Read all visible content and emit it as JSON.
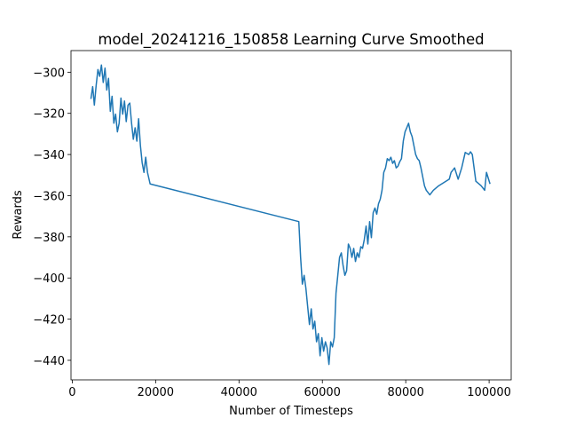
{
  "chart_data": {
    "type": "line",
    "title": "model_20241216_150858 Learning Curve Smoothed",
    "xlabel": "Number of Timesteps",
    "ylabel": "Rewards",
    "xlim": [
      -300,
      105300
    ],
    "ylim": [
      -449.5,
      -289.5
    ],
    "xticks": [
      0,
      20000,
      40000,
      60000,
      80000,
      100000
    ],
    "yticks": [
      {
        "value": -440,
        "label": "−440"
      },
      {
        "value": -420,
        "label": "−420"
      },
      {
        "value": -400,
        "label": "−400"
      },
      {
        "value": -380,
        "label": "−380"
      },
      {
        "value": -360,
        "label": "−360"
      },
      {
        "value": -340,
        "label": "−340"
      },
      {
        "value": -320,
        "label": "−320"
      },
      {
        "value": -300,
        "label": "−300"
      }
    ],
    "series": [
      {
        "color": "#1f77b4",
        "x": [
          4480,
          4900,
          5300,
          5730,
          6160,
          6580,
          7000,
          7430,
          7860,
          8280,
          8700,
          9130,
          9550,
          9980,
          10400,
          10830,
          11250,
          11680,
          12100,
          12530,
          12950,
          13380,
          13800,
          14230,
          14650,
          15080,
          15500,
          15920,
          16350,
          16770,
          17200,
          17620,
          18050,
          18680,
          54350,
          54780,
          55200,
          55630,
          56050,
          56480,
          56900,
          57330,
          57750,
          58180,
          58600,
          59030,
          59450,
          59880,
          60300,
          60730,
          61150,
          61580,
          62000,
          62430,
          62850,
          63270,
          63700,
          64120,
          64550,
          64970,
          65400,
          65820,
          66240,
          66670,
          67090,
          67520,
          67940,
          68370,
          68790,
          69220,
          69640,
          70060,
          70490,
          70910,
          71340,
          71760,
          72190,
          72610,
          73040,
          73460,
          73890,
          74310,
          74730,
          75160,
          75580,
          76010,
          76430,
          76860,
          77280,
          77710,
          78130,
          78560,
          78980,
          79410,
          79830,
          80250,
          80680,
          81100,
          81530,
          81950,
          82380,
          82800,
          83230,
          83650,
          84080,
          84500,
          84930,
          85780,
          86620,
          87900,
          90440,
          90870,
          91720,
          92570,
          93420,
          94270,
          95120,
          95540,
          95970,
          96820,
          98090,
          98940,
          99370,
          100220
        ],
        "values": [
          -313,
          -307,
          -316,
          -306.5,
          -298.7,
          -302,
          -296.5,
          -305,
          -298,
          -308.7,
          -303,
          -319,
          -311.7,
          -324.8,
          -320.4,
          -329,
          -324.8,
          -312.6,
          -320.4,
          -314,
          -324,
          -316,
          -315,
          -324.8,
          -332.6,
          -327,
          -333.5,
          -322.6,
          -335.6,
          -344,
          -348.7,
          -341.3,
          -348.7,
          -354.3,
          -372.6,
          -390,
          -403,
          -398.7,
          -405,
          -414,
          -422.6,
          -415,
          -424.8,
          -421,
          -431,
          -427,
          -437.8,
          -429,
          -435.6,
          -431,
          -434,
          -442,
          -431,
          -433.5,
          -429,
          -407.4,
          -398.7,
          -390,
          -387.8,
          -394,
          -398.7,
          -396.5,
          -383.5,
          -385.6,
          -390,
          -385.6,
          -392,
          -387.8,
          -390,
          -384.8,
          -385.6,
          -381.3,
          -374.8,
          -383.5,
          -372.6,
          -380.4,
          -368.3,
          -366,
          -369,
          -364,
          -361.7,
          -357.4,
          -348.7,
          -346.5,
          -342,
          -343,
          -341.3,
          -344.3,
          -343,
          -346.5,
          -345.7,
          -343.5,
          -342,
          -333.5,
          -329,
          -327,
          -324.8,
          -329,
          -331.3,
          -335.6,
          -340,
          -342,
          -343,
          -346.5,
          -350.9,
          -355.2,
          -357.4,
          -359.6,
          -357.4,
          -355.2,
          -352,
          -348.7,
          -346.5,
          -352,
          -346.5,
          -339,
          -340,
          -338.7,
          -340,
          -353,
          -355.2,
          -357.4,
          -348.7,
          -354.3
        ]
      }
    ]
  }
}
